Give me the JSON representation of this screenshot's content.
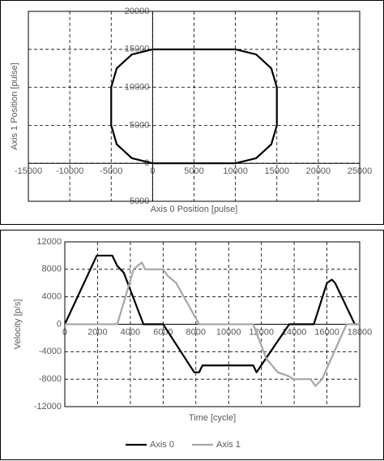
{
  "chart_data": [
    {
      "type": "line",
      "x_label": "Axis 0 Position [pulse]",
      "y_label": "Axis 1 Position [pulse]",
      "xlim": [
        -15000,
        25000
      ],
      "xticks": [
        -15000,
        -10000,
        -5000,
        0,
        5000,
        10000,
        15000,
        20000,
        25000
      ],
      "ylim": [
        -5000,
        20000
      ],
      "yticks": [
        -5000,
        0,
        5000,
        10000,
        15000,
        20000
      ],
      "grid": true,
      "series": [
        {
          "color": "#000000",
          "x": [
            0,
            10000,
            12500,
            14330,
            15000,
            15000,
            14330,
            12500,
            10000,
            0,
            -2500,
            -4330,
            -5000,
            -5000,
            -4330,
            -2500,
            0
          ],
          "values": [
            0,
            0,
            670,
            2500,
            5000,
            10000,
            12500,
            14330,
            15000,
            15000,
            14330,
            12500,
            10000,
            5000,
            2500,
            670,
            0
          ]
        }
      ]
    },
    {
      "type": "line",
      "x_label": "Time [cycle]",
      "y_label": "Velocity [p/s]",
      "xlim": [
        0,
        18000
      ],
      "xticks": [
        0,
        2000,
        4000,
        6000,
        8000,
        10000,
        12000,
        14000,
        16000,
        18000
      ],
      "ylim": [
        -12000,
        12000
      ],
      "yticks": [
        -12000,
        -8000,
        -4000,
        0,
        4000,
        8000,
        12000
      ],
      "grid": true,
      "legend": "bottom",
      "series": [
        {
          "name": "Axis 0",
          "color": "#000000",
          "x": [
            0,
            1950,
            2900,
            3200,
            3600,
            4800,
            6000,
            7900,
            8200,
            8400,
            11500,
            11700,
            13700,
            15200,
            16000,
            16300,
            16500,
            17700,
            18000
          ],
          "values": [
            0,
            10000,
            10000,
            8500,
            7500,
            0,
            0,
            -7000,
            -7000,
            -6000,
            -6000,
            -7000,
            0,
            0,
            6000,
            6500,
            6000,
            0,
            0
          ]
        },
        {
          "name": "Axis 1",
          "color": "#a6a6a6",
          "x": [
            0,
            3200,
            4200,
            4700,
            4900,
            6000,
            6300,
            6800,
            8200,
            11500,
            12300,
            13000,
            13600,
            14000,
            15000,
            15300,
            15700,
            17200,
            18000
          ],
          "values": [
            0,
            0,
            8000,
            9000,
            8000,
            8000,
            7000,
            6000,
            0,
            0,
            -5000,
            -7000,
            -7500,
            -8000,
            -8000,
            -9000,
            -8000,
            0,
            0
          ]
        }
      ]
    }
  ]
}
